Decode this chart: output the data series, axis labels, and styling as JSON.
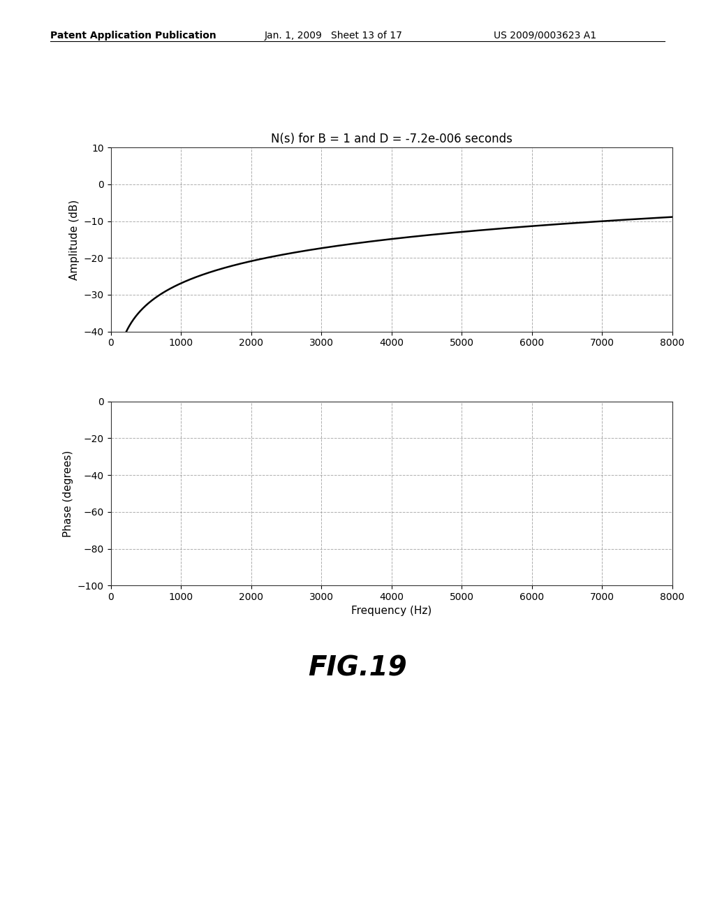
{
  "title": "N(s) for B = 1 and D = -7.2e-006 seconds",
  "B": 1.0,
  "D": -7.2e-06,
  "freq_min": 0,
  "freq_max": 8000,
  "freq_points": 2000,
  "amp_ylim": [
    -40,
    10
  ],
  "amp_yticks": [
    -40,
    -30,
    -20,
    -10,
    0,
    10
  ],
  "amp_ylabel": "Amplitude (dB)",
  "phase_ylim": [
    -100,
    0
  ],
  "phase_yticks": [
    -100,
    -80,
    -60,
    -40,
    -20,
    0
  ],
  "phase_ylabel": "Phase (degrees)",
  "xlabel": "Frequency (Hz)",
  "xticks": [
    0,
    1000,
    2000,
    3000,
    4000,
    5000,
    6000,
    7000,
    8000
  ],
  "fig_label": "FIG.19",
  "header_left": "Patent Application Publication",
  "header_center": "Jan. 1, 2009   Sheet 13 of 17",
  "header_right": "US 2009/0003623 A1",
  "background_color": "#ffffff",
  "line_color": "#000000",
  "grid_color": "#999999",
  "header_fontsize": 10,
  "title_fontsize": 12,
  "axis_label_fontsize": 11,
  "tick_fontsize": 10,
  "fig_label_fontsize": 28
}
